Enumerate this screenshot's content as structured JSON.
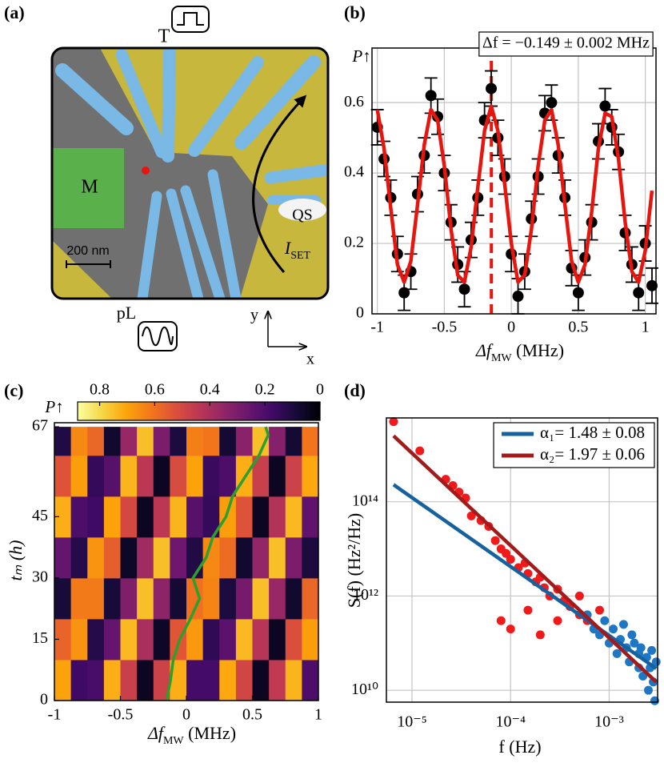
{
  "image_panel": {
    "label": "(a)",
    "gate_label": "T",
    "magnet_label": "M",
    "sensor_label": "QS",
    "scale_bar": "200 nm",
    "plunger_label": "pL",
    "current_label": [
      "I",
      "SET"
    ],
    "axis_y": "y",
    "axis_x": "x"
  },
  "chart_data": [
    {
      "type": "scatter",
      "label": "(b)",
      "annotation": "Δf = −0.149 ± 0.002 MHz",
      "vline": -0.149,
      "vline_color": "#e8150f",
      "xlabel": [
        "Δf",
        "MW",
        " (MHz)"
      ],
      "ylabel": "P↑",
      "points": [
        {
          "color": "#000000",
          "error": 0.05,
          "x": [
            -1,
            -0.95,
            -0.9,
            -0.85,
            -0.8,
            -0.75,
            -0.7,
            -0.65,
            -0.6,
            -0.55,
            -0.5,
            -0.45,
            -0.4,
            -0.35,
            -0.3,
            -0.25,
            -0.2,
            -0.15,
            -0.1,
            -0.05,
            0,
            0.05,
            0.1,
            0.15,
            0.2,
            0.25,
            0.3,
            0.35,
            0.4,
            0.45,
            0.5,
            0.55,
            0.6,
            0.65,
            0.7,
            0.75,
            0.8,
            0.85,
            0.9,
            0.95,
            1,
            1.05
          ],
          "values": [
            0.53,
            0.44,
            0.33,
            0.17,
            0.06,
            0.12,
            0.34,
            0.45,
            0.62,
            0.56,
            0.4,
            0.26,
            0.14,
            0.07,
            0.21,
            0.33,
            0.55,
            0.64,
            0.5,
            0.39,
            0.17,
            0.05,
            0.12,
            0.27,
            0.39,
            0.57,
            0.6,
            0.45,
            0.33,
            0.13,
            0.06,
            0.16,
            0.26,
            0.49,
            0.59,
            0.53,
            0.46,
            0.23,
            0.14,
            0.06,
            0.2,
            0.08
          ]
        }
      ],
      "series": [
        {
          "color": "#e8150f",
          "x": [
            -1,
            -0.95,
            -0.9,
            -0.85,
            -0.8,
            -0.75,
            -0.7,
            -0.65,
            -0.6,
            -0.55,
            -0.5,
            -0.45,
            -0.4,
            -0.35,
            -0.3,
            -0.25,
            -0.2,
            -0.15,
            -0.1,
            -0.05,
            0,
            0.05,
            0.1,
            0.15,
            0.2,
            0.25,
            0.3,
            0.35,
            0.4,
            0.45,
            0.5,
            0.55,
            0.6,
            0.65,
            0.7,
            0.75,
            0.8,
            0.85,
            0.9,
            0.95,
            1,
            1.05
          ],
          "values": [
            0.58,
            0.47,
            0.3,
            0.14,
            0.09,
            0.15,
            0.31,
            0.48,
            0.58,
            0.55,
            0.42,
            0.24,
            0.11,
            0.09,
            0.19,
            0.36,
            0.52,
            0.59,
            0.52,
            0.37,
            0.2,
            0.09,
            0.11,
            0.24,
            0.42,
            0.55,
            0.58,
            0.48,
            0.31,
            0.15,
            0.09,
            0.14,
            0.29,
            0.47,
            0.57,
            0.56,
            0.44,
            0.26,
            0.12,
            0.09,
            0.18,
            0.35
          ]
        }
      ],
      "xlim": [
        -1.04,
        1.08
      ],
      "ylim": [
        0,
        0.755
      ],
      "xticks": [
        -1,
        -0.5,
        0,
        0.5,
        1
      ],
      "yticks": [
        0,
        0.2,
        0.4,
        0.6
      ],
      "grid": true
    },
    {
      "type": "heatmap",
      "label": "(c)",
      "colorbar_label": "P↑",
      "xlabel": [
        "Δf",
        "MW",
        " (MHz)"
      ],
      "ylabel": "tₘ (h)",
      "x_bins": [
        -1,
        -0.875,
        -0.75,
        -0.625,
        -0.5,
        -0.375,
        -0.25,
        -0.125,
        0,
        0.125,
        0.25,
        0.375,
        0.5,
        0.625,
        0.75,
        0.875,
        1
      ],
      "y_bins": [
        0,
        10,
        20,
        30,
        40,
        50,
        60,
        67
      ],
      "values": [
        [
          0.7,
          0.17,
          0.19,
          0.72,
          0.47,
          0.05,
          0.48,
          0.72,
          0.18,
          0.18,
          0.71,
          0.49,
          0.05,
          0.45,
          0.73,
          0.2
        ],
        [
          0.57,
          0.67,
          0.12,
          0.25,
          0.74,
          0.4,
          0.06,
          0.54,
          0.68,
          0.14,
          0.23,
          0.74,
          0.43,
          0.05,
          0.52,
          0.69
        ],
        [
          0.09,
          0.62,
          0.62,
          0.09,
          0.31,
          0.75,
          0.34,
          0.08,
          0.6,
          0.64,
          0.1,
          0.29,
          0.75,
          0.36,
          0.07,
          0.58
        ],
        [
          0.25,
          0.12,
          0.67,
          0.56,
          0.06,
          0.38,
          0.75,
          0.27,
          0.11,
          0.65,
          0.59,
          0.07,
          0.35,
          0.75,
          0.3,
          0.1
        ],
        [
          0.72,
          0.2,
          0.17,
          0.7,
          0.5,
          0.05,
          0.44,
          0.73,
          0.22,
          0.15,
          0.69,
          0.53,
          0.05,
          0.42,
          0.74,
          0.24
        ],
        [
          0.53,
          0.69,
          0.15,
          0.22,
          0.73,
          0.44,
          0.05,
          0.51,
          0.7,
          0.16,
          0.2,
          0.72,
          0.47,
          0.05,
          0.48,
          0.71
        ],
        [
          0.11,
          0.65,
          0.58,
          0.07,
          0.36,
          0.75,
          0.3,
          0.1,
          0.63,
          0.61,
          0.08,
          0.33,
          0.75,
          0.32,
          0.08,
          0.61
        ]
      ],
      "colormap": "inferno",
      "clim": [
        0.88,
        0
      ],
      "cticks": [
        0.8,
        0.6,
        0.4,
        0.2,
        0
      ],
      "trace": {
        "color": "#2ca02c",
        "x": [
          -0.15,
          -0.12,
          -0.1,
          -0.05,
          0.03,
          0.1,
          0.05,
          0.15,
          0.2,
          0.3,
          0.35,
          0.45,
          0.55,
          0.62,
          0.6
        ],
        "y": [
          0,
          5,
          10,
          15,
          20,
          25,
          30,
          35,
          40,
          45,
          50,
          55,
          60,
          65,
          67
        ]
      },
      "xlim": [
        -1,
        1
      ],
      "ylim": [
        0,
        68
      ],
      "xticks": [
        -1,
        -0.5,
        0,
        0.5,
        1
      ],
      "yticks": [
        0,
        15,
        30,
        45,
        67
      ]
    },
    {
      "type": "scatter",
      "label": "(d)",
      "xlabel": "f (Hz)",
      "ylabel": "S(f) (Hz²/Hz)",
      "xscale": "log",
      "yscale": "log",
      "legend": "upper right",
      "points": [
        {
          "color": "#f01a1a",
          "x": [
            6.5e-06,
            1.2e-05,
            2.2e-05,
            2.6e-05,
            3e-05,
            3.5e-05,
            4e-05,
            5e-05,
            6e-05,
            7e-05,
            8e-05,
            9e-05,
            0.0001,
            0.00012,
            0.00014,
            0.00015,
            0.00018,
            0.0002,
            0.00022,
            0.00025,
            0.0003,
            0.00035,
            0.0004,
            0.0005,
            0.0006,
            0.0007,
            8e-05,
            0.0001,
            0.00015,
            0.0002,
            0.0003,
            0.0005,
            0.0008
          ],
          "values": [
            5000000000000000.0,
            1200000000000000.0,
            300000000000000.0,
            220000000000000.0,
            160000000000000.0,
            120000000000000.0,
            50000000000000.0,
            40000000000000.0,
            30000000000000.0,
            15000000000000.0,
            10000000000000.0,
            8000000000000.0,
            6000000000000.0,
            4000000000000.0,
            5000000000000.0,
            3000000000000.0,
            2000000000000.0,
            2500000000000.0,
            1500000000000.0,
            1000000000000.0,
            1400000000000.0,
            800000000000.0,
            600000000000.0,
            400000000000.0,
            300000000000.0,
            200000000000.0,
            300000000000.0,
            200000000000.0,
            500000000000.0,
            150000000000.0,
            300000000000.0,
            1000000000000.0,
            500000000000.0
          ]
        },
        {
          "color": "#1f77c4",
          "x": [
            0.0006,
            0.0007,
            0.0008,
            0.0009,
            0.001,
            0.0011,
            0.0012,
            0.0013,
            0.0015,
            0.0016,
            0.0018,
            0.002,
            0.002,
            0.0022,
            0.0024,
            0.0025,
            0.0026,
            0.0028,
            0.0029,
            0.003,
            0.0014,
            0.0017,
            0.0021,
            0.0027
          ],
          "values": [
            400000000000.0,
            200000000000.0,
            150000000000.0,
            300000000000.0,
            100000000000.0,
            200000000000.0,
            60000000000.0,
            120000000000.0,
            80000000000.0,
            40000000000.0,
            100000000000.0,
            30000000000.0,
            60000000000.0,
            20000000000.0,
            50000000000.0,
            10000000000.0,
            30000000000.0,
            15000000000.0,
            6000000000.0,
            40000000000.0,
            250000000000.0,
            150000000000.0,
            80000000000.0,
            70000000000.0
          ]
        }
      ],
      "series": [
        {
          "name": "α₁= 1.48 ± 0.08",
          "color": "#16619f",
          "x": [
            6.5e-06,
            0.003
          ],
          "values": [
            230000000000000.0,
            29000000000.0
          ]
        },
        {
          "name": "α₂= 1.97 ± 0.06",
          "color": "#a31a1a",
          "x": [
            6.5e-06,
            0.003
          ],
          "values": [
            2500000000000000.0,
            15000000000.0
          ]
        }
      ],
      "xlim": [
        5.5e-06,
        0.0031
      ],
      "ylim": [
        5600000000.0,
        6000000000000000.0
      ],
      "xticks": [
        {
          "value": 1e-05,
          "label": "10⁻⁵"
        },
        {
          "value": 0.0001,
          "label": "10⁻⁴"
        },
        {
          "value": 0.001,
          "label": "10⁻³"
        }
      ],
      "yticks": [
        {
          "value": 10000000000.0,
          "label": "10¹⁰"
        },
        {
          "value": 1000000000000.0,
          "label": "10¹²"
        },
        {
          "value": 100000000000000.0,
          "label": "10¹⁴"
        }
      ],
      "grid": true
    }
  ]
}
